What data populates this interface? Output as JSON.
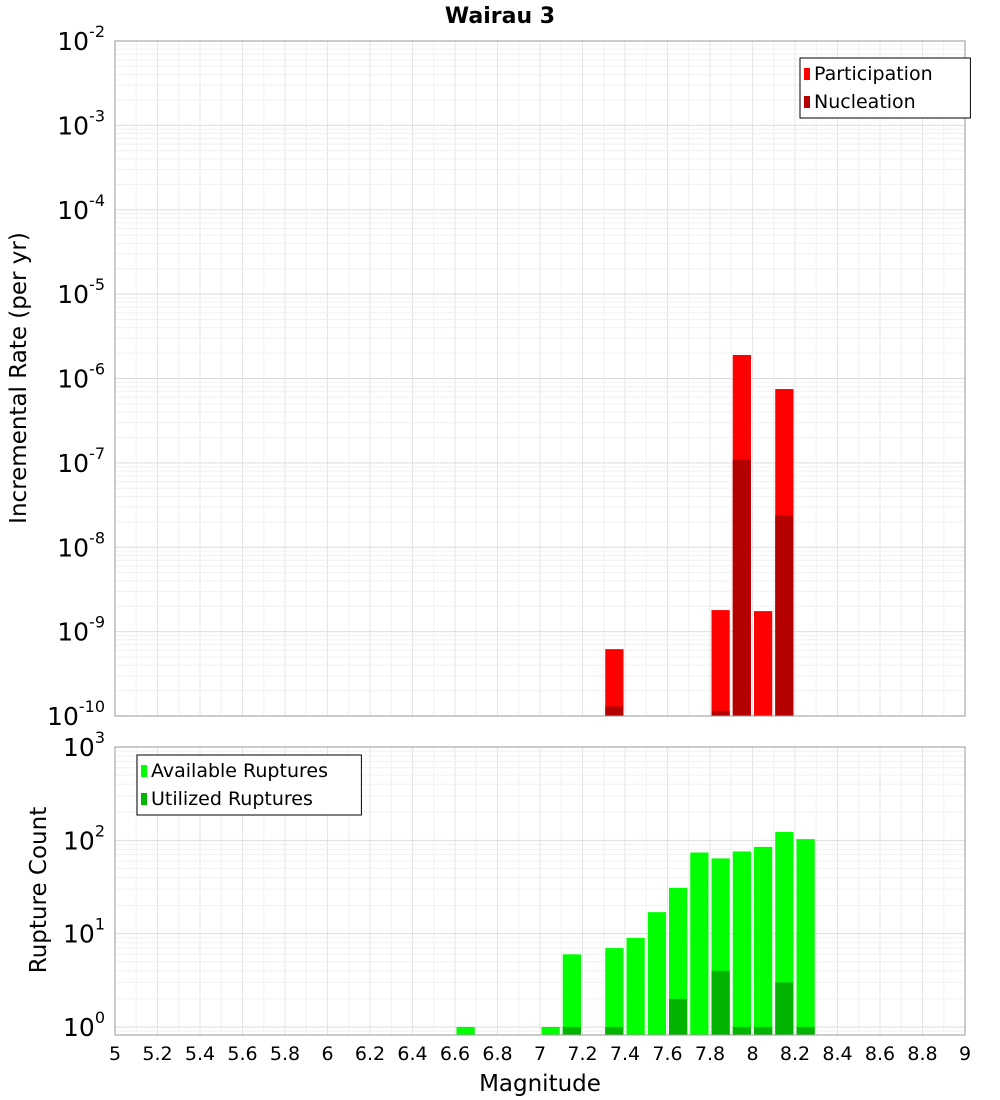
{
  "chart_data": [
    {
      "type": "bar",
      "title": "Wairau 3",
      "xlabel": "",
      "ylabel": "Incremental Rate (per yr)",
      "yscale": "log",
      "ylim": [
        1e-10,
        0.01
      ],
      "xlim": [
        5,
        9
      ],
      "bin_width": 0.1,
      "ytick_labels": [
        {
          "base": "10",
          "exp": "-10",
          "value": 1e-10
        },
        {
          "base": "10",
          "exp": "-9",
          "value": 1e-09
        },
        {
          "base": "10",
          "exp": "-8",
          "value": 1e-08
        },
        {
          "base": "10",
          "exp": "-7",
          "value": 1e-07
        },
        {
          "base": "10",
          "exp": "-6",
          "value": 1e-06
        },
        {
          "base": "10",
          "exp": "-5",
          "value": 1e-05
        },
        {
          "base": "10",
          "exp": "-4",
          "value": 0.0001
        },
        {
          "base": "10",
          "exp": "-3",
          "value": 0.001
        },
        {
          "base": "10",
          "exp": "-2",
          "value": 0.01
        }
      ],
      "legend_position": "top-right",
      "series": [
        {
          "name": "Participation",
          "color": "#ff0000",
          "x": [
            7.35,
            7.85,
            7.95,
            8.05,
            8.15
          ],
          "values": [
            6.2e-10,
            1.8e-09,
            1.9e-06,
            1.75e-09,
            7.5e-07
          ]
        },
        {
          "name": "Nucleation",
          "color": "#b40000",
          "x": [
            7.35,
            7.85,
            7.95,
            8.15
          ],
          "values": [
            1.3e-10,
            1.15e-10,
            1.1e-07,
            2.4e-08
          ]
        }
      ]
    },
    {
      "type": "bar",
      "title": "",
      "xlabel": "Magnitude",
      "ylabel": "Rupture Count",
      "yscale": "log",
      "ylim": [
        0.82,
        1000
      ],
      "xlim": [
        5,
        9
      ],
      "bin_width": 0.1,
      "ytick_labels": [
        {
          "base": "10",
          "exp": "0",
          "value": 1
        },
        {
          "base": "10",
          "exp": "1",
          "value": 10
        },
        {
          "base": "10",
          "exp": "2",
          "value": 100
        },
        {
          "base": "10",
          "exp": "3",
          "value": 1000
        }
      ],
      "xtick_labels": [
        "5",
        "5.2",
        "5.4",
        "5.6",
        "5.8",
        "6",
        "6.2",
        "6.4",
        "6.6",
        "6.8",
        "7",
        "7.2",
        "7.4",
        "7.6",
        "7.8",
        "8",
        "8.2",
        "8.4",
        "8.6",
        "8.8",
        "9"
      ],
      "legend_position": "top-left",
      "series": [
        {
          "name": "Available Ruptures",
          "color": "#00ff00",
          "x": [
            6.65,
            7.05,
            7.15,
            7.35,
            7.45,
            7.55,
            7.65,
            7.75,
            7.85,
            7.95,
            8.05,
            8.15,
            8.25
          ],
          "values": [
            1,
            1,
            6,
            7,
            9,
            17,
            31,
            74,
            64,
            76,
            85,
            123,
            103
          ]
        },
        {
          "name": "Utilized Ruptures",
          "color": "#00b400",
          "x": [
            7.15,
            7.35,
            7.65,
            7.85,
            7.95,
            8.05,
            8.15,
            8.25
          ],
          "values": [
            1,
            1,
            2,
            4,
            1,
            1,
            3,
            1
          ]
        }
      ]
    }
  ]
}
